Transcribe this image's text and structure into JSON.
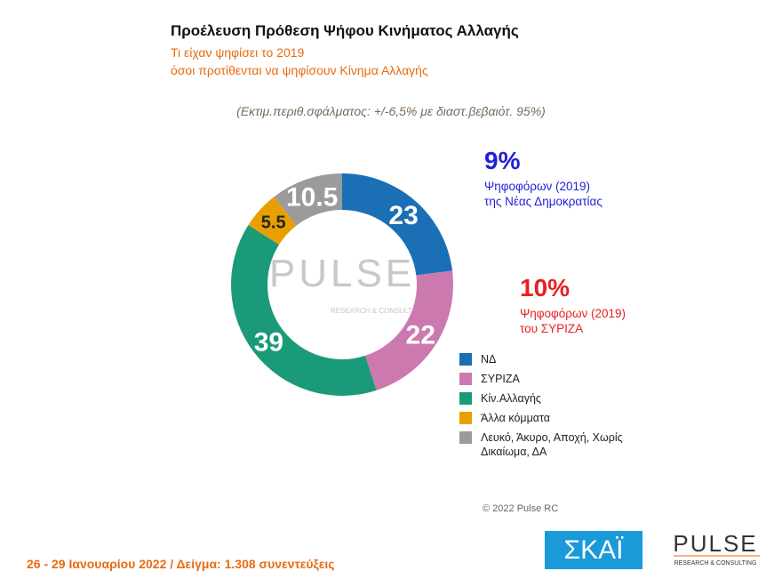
{
  "chart_data": {
    "type": "pie",
    "title": "Προέλευση Πρόθεση Ψήφου Κινήματος Αλλαγής",
    "subtitle": [
      "Τι είχαν ψηφίσει το 2019",
      "όσοι προτίθενται να ψηφίσουν Κίνημα Αλλαγής"
    ],
    "note": "(Εκτιμ.περιθ.σφάλματος: +/-6,5% με διαστ.βεβαιότ. 95%)",
    "categories": [
      "ΝΔ",
      "ΣΥΡΙΖΑ",
      "Κίν.Αλλαγής",
      "Άλλα κόμματα",
      "Λευκό, Άκυρο, Αποχή, Χωρίς Δικαίωμα, ΔΑ"
    ],
    "values": [
      23,
      22,
      39,
      5.5,
      10.5
    ],
    "colors": [
      "#1a6fb5",
      "#cc79b0",
      "#1a9a78",
      "#e8a000",
      "#9b9b9b"
    ],
    "label_colors": [
      "#ffffff",
      "#ffffff",
      "#ffffff",
      "#222222",
      "#ffffff"
    ],
    "donut": true,
    "annotations": [
      {
        "value_text": "9%",
        "lines": [
          "Ψηφοφόρων (2019)",
          "της Νέας Δημοκρατίας"
        ],
        "color": "#1f1fd8"
      },
      {
        "value_text": "10%",
        "lines": [
          "Ψηφοφόρων (2019)",
          "του ΣΥΡΙΖΑ"
        ],
        "color": "#e82020"
      }
    ],
    "watermark": [
      "PULSE",
      "RESEARCH & CONSULTING"
    ],
    "copyright": "© 2022 Pulse RC",
    "footer": "26 - 29 Ιανουαρίου 2022  /  Δείγμα:  1.308 συνεντεύξεις",
    "logos": [
      "ΣΚΑΪ",
      "PULSE",
      "RESEARCH & CONSULTING"
    ]
  }
}
